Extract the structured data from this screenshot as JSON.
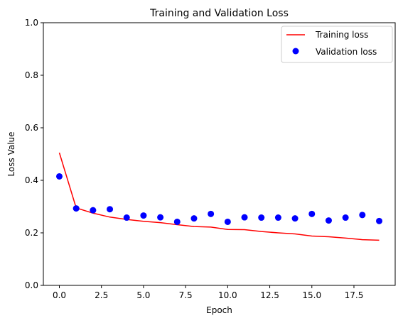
{
  "chart_data": {
    "type": "line",
    "title": "Training and Validation Loss",
    "xlabel": "Epoch",
    "ylabel": "Loss Value",
    "xlim": [
      -0.95,
      19.95
    ],
    "ylim": [
      0,
      1
    ],
    "xticks": [
      0.0,
      2.5,
      5.0,
      7.5,
      10.0,
      12.5,
      15.0,
      17.5
    ],
    "xtick_labels": [
      "0.0",
      "2.5",
      "5.0",
      "7.5",
      "10.0",
      "12.5",
      "15.0",
      "17.5"
    ],
    "yticks": [
      0.0,
      0.2,
      0.4,
      0.6,
      0.8,
      1.0
    ],
    "ytick_labels": [
      "0.0",
      "0.2",
      "0.4",
      "0.6",
      "0.8",
      "1.0"
    ],
    "grid": false,
    "legend_position": "top-right",
    "x": [
      0,
      1,
      2,
      3,
      4,
      5,
      6,
      7,
      8,
      9,
      10,
      11,
      12,
      13,
      14,
      15,
      16,
      17,
      18,
      19
    ],
    "series": [
      {
        "name": "Training loss",
        "style": "line",
        "color": "#ff0000",
        "values": [
          0.505,
          0.295,
          0.275,
          0.26,
          0.251,
          0.244,
          0.239,
          0.231,
          0.224,
          0.222,
          0.213,
          0.212,
          0.205,
          0.2,
          0.196,
          0.188,
          0.185,
          0.18,
          0.174,
          0.172
        ]
      },
      {
        "name": "Validation loss",
        "style": "markers",
        "color": "#0000ff",
        "values": [
          0.415,
          0.293,
          0.286,
          0.29,
          0.258,
          0.266,
          0.259,
          0.242,
          0.255,
          0.272,
          0.242,
          0.259,
          0.258,
          0.258,
          0.255,
          0.272,
          0.247,
          0.258,
          0.268,
          0.245
        ]
      }
    ]
  }
}
